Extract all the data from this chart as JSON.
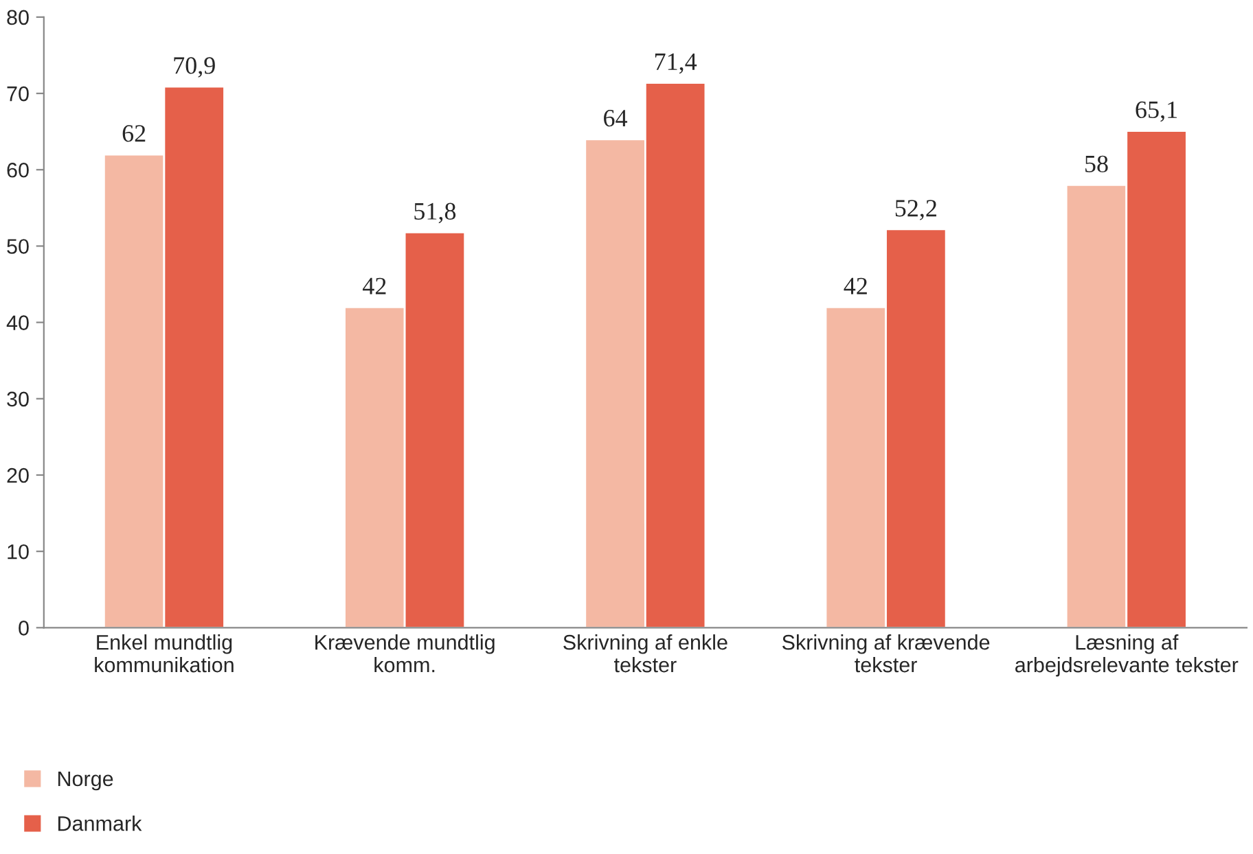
{
  "chart_data": {
    "type": "bar",
    "categories": [
      "Enkel mundtlig\nkommunikation",
      "Krævende mundtlig\nkomm.",
      "Skrivning af enkle\ntekster",
      "Skrivning af krævende\ntekster",
      "Læsning af\narbejdsrelevante tekster"
    ],
    "series": [
      {
        "name": "Norge",
        "color": "#f4b8a3",
        "values": [
          62,
          42,
          64,
          42,
          58
        ],
        "value_labels": [
          "62",
          "42",
          "64",
          "42",
          "58"
        ]
      },
      {
        "name": "Danmark",
        "color": "#e5604a",
        "values": [
          70.9,
          51.8,
          71.4,
          52.2,
          65.1
        ],
        "value_labels": [
          "70,9",
          "51,8",
          "71,4",
          "52,2",
          "65,1"
        ]
      }
    ],
    "ylim": [
      0,
      80
    ],
    "yticks": [
      0,
      10,
      20,
      30,
      40,
      50,
      60,
      70,
      80
    ],
    "grid": false,
    "legend": "bottom left"
  }
}
